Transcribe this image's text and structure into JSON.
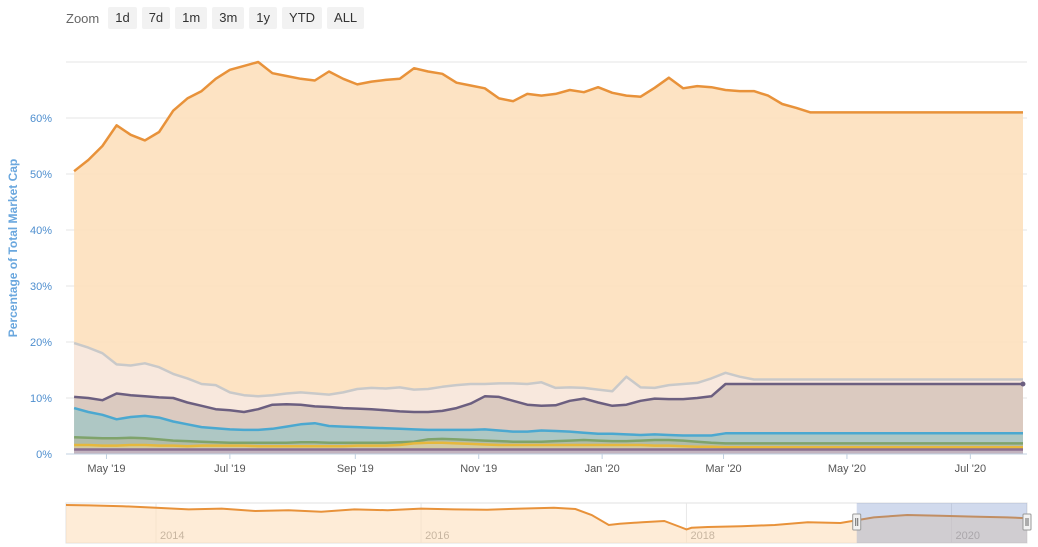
{
  "zoom": {
    "label": "Zoom",
    "buttons": [
      "1d",
      "7d",
      "1m",
      "3m",
      "1y",
      "YTD",
      "ALL"
    ]
  },
  "chart_data": {
    "type": "area",
    "title": "",
    "xlabel": "",
    "ylabel": "Percentage of Total Market Cap",
    "ylim": [
      0,
      70
    ],
    "y_ticks": [
      "0%",
      "10%",
      "20%",
      "30%",
      "40%",
      "50%",
      "60%"
    ],
    "y_tick_values": [
      0,
      10,
      20,
      30,
      40,
      50,
      60
    ],
    "x_ticks": [
      "May '19",
      "Jul '19",
      "Sep '19",
      "Nov '19",
      "Jan '20",
      "Mar '20",
      "May '20",
      "Jul '20"
    ],
    "x_tick_dates": [
      "2019-05-01",
      "2019-07-01",
      "2019-09-01",
      "2019-11-01",
      "2020-01-01",
      "2020-03-01",
      "2020-05-01",
      "2020-07-01"
    ],
    "x": [
      "2019-04-15",
      "2019-04-22",
      "2019-04-29",
      "2019-05-06",
      "2019-05-13",
      "2019-05-20",
      "2019-05-27",
      "2019-06-03",
      "2019-06-10",
      "2019-06-17",
      "2019-06-24",
      "2019-07-01",
      "2019-07-08",
      "2019-07-15",
      "2019-07-22",
      "2019-07-29",
      "2019-08-05",
      "2019-08-12",
      "2019-08-19",
      "2019-08-26",
      "2019-09-02",
      "2019-09-09",
      "2019-09-16",
      "2019-09-23",
      "2019-09-30",
      "2019-10-07",
      "2019-10-14",
      "2019-10-21",
      "2019-10-28",
      "2019-11-04",
      "2019-11-11",
      "2019-11-18",
      "2019-11-25",
      "2019-12-02",
      "2019-12-09",
      "2019-12-16",
      "2019-12-23",
      "2019-12-30",
      "2020-01-06",
      "2020-01-13",
      "2020-01-20",
      "2020-01-27",
      "2020-02-03",
      "2020-02-10",
      "2020-02-17",
      "2020-02-24",
      "2020-03-02",
      "2020-03-09",
      "2020-03-16",
      "2020-03-23",
      "2020-03-30",
      "2020-04-06",
      "2020-04-13",
      "2020-04-20",
      "2020-04-27",
      "2020-05-04",
      "2020-05-11",
      "2020-05-18",
      "2020-05-25",
      "2020-06-01",
      "2020-06-08",
      "2020-06-15",
      "2020-06-22",
      "2020-06-29",
      "2020-07-06",
      "2020-07-13",
      "2020-07-20",
      "2020-07-27"
    ],
    "series": [
      {
        "color": "#e8923a",
        "fill": "#fde0bd",
        "values": [
          50.5,
          52.5,
          55.0,
          58.7,
          57.0,
          56.0,
          57.5,
          61.3,
          63.5,
          64.8,
          67.0,
          68.6,
          69.3,
          70.0,
          68.0,
          67.5,
          67.0,
          66.7,
          68.3,
          67.0,
          66.0,
          66.5,
          66.8,
          67.0,
          68.9,
          68.3,
          67.9,
          66.3,
          65.8,
          65.3,
          63.5,
          63.0,
          64.3,
          64.0,
          64.3,
          65.0,
          64.6,
          65.5,
          64.5,
          64.0,
          63.8,
          65.4,
          67.2,
          65.3,
          65.7,
          65.5,
          65.0,
          64.8,
          64.8,
          64.0,
          62.5,
          61.8,
          61.0,
          61.0,
          61.0,
          61.0,
          61.0,
          61.0,
          61.0,
          61.0,
          61.0,
          61.0,
          61.0,
          61.0,
          61.0,
          61.0,
          61.0,
          61.0
        ]
      },
      {
        "color": "#c9c9c9",
        "fill": "#f7e8e0",
        "values": [
          19.8,
          19.0,
          18.0,
          16.0,
          15.8,
          16.2,
          15.5,
          14.3,
          13.5,
          12.5,
          12.3,
          11.0,
          10.5,
          10.3,
          10.5,
          10.8,
          11.0,
          10.8,
          10.6,
          11.0,
          11.6,
          11.8,
          11.7,
          11.9,
          11.5,
          11.6,
          12.0,
          12.3,
          12.5,
          12.5,
          12.6,
          12.6,
          12.5,
          12.8,
          11.8,
          11.9,
          11.8,
          11.5,
          11.2,
          13.8,
          11.9,
          11.8,
          12.3,
          12.5,
          12.7,
          13.5,
          14.5,
          13.8,
          13.3,
          13.3,
          13.3,
          13.3,
          13.3,
          13.3,
          13.3,
          13.3,
          13.3,
          13.3,
          13.3,
          13.3,
          13.3,
          13.3,
          13.3,
          13.3,
          13.3,
          13.3,
          13.3,
          13.3
        ]
      },
      {
        "color": "#6c5f80",
        "fill": "#d7c7bc",
        "values": [
          10.2,
          10.0,
          9.6,
          10.8,
          10.5,
          10.3,
          10.1,
          10.0,
          9.2,
          8.6,
          8.0,
          7.8,
          7.5,
          8.0,
          8.8,
          8.9,
          8.8,
          8.5,
          8.4,
          8.2,
          8.1,
          8.0,
          7.8,
          7.6,
          7.5,
          7.5,
          7.7,
          8.2,
          9.0,
          10.3,
          10.2,
          9.5,
          8.8,
          8.6,
          8.7,
          9.5,
          9.9,
          9.2,
          8.6,
          8.8,
          9.5,
          9.9,
          9.8,
          9.8,
          10.0,
          10.3,
          12.5,
          12.5,
          12.5,
          12.5,
          12.5,
          12.5,
          12.5,
          12.5,
          12.5,
          12.5,
          12.5,
          12.5,
          12.5,
          12.5,
          12.5,
          12.5,
          12.5,
          12.5,
          12.5,
          12.5,
          12.5,
          12.5
        ]
      },
      {
        "color": "#4ba8d0",
        "fill": "#a9c6c4",
        "values": [
          8.2,
          7.5,
          7.0,
          6.2,
          6.6,
          6.8,
          6.5,
          5.8,
          5.3,
          4.8,
          4.6,
          4.4,
          4.3,
          4.3,
          4.5,
          4.9,
          5.3,
          5.5,
          5.0,
          4.9,
          4.8,
          4.7,
          4.6,
          4.5,
          4.4,
          4.3,
          4.3,
          4.3,
          4.3,
          4.4,
          4.2,
          4.0,
          4.0,
          4.2,
          4.1,
          4.0,
          3.8,
          3.6,
          3.6,
          3.5,
          3.4,
          3.5,
          3.4,
          3.3,
          3.3,
          3.3,
          3.7,
          3.7,
          3.7,
          3.7,
          3.7,
          3.7,
          3.7,
          3.7,
          3.7,
          3.7,
          3.7,
          3.7,
          3.7,
          3.7,
          3.7,
          3.7,
          3.7,
          3.7,
          3.7,
          3.7,
          3.7,
          3.7
        ]
      },
      {
        "color": "#7fa36b",
        "fill": "#b1baa6",
        "values": [
          3.0,
          2.9,
          2.8,
          2.8,
          2.9,
          2.8,
          2.6,
          2.4,
          2.3,
          2.2,
          2.1,
          2.0,
          2.0,
          2.0,
          2.0,
          2.0,
          2.1,
          2.1,
          2.0,
          2.0,
          2.0,
          2.0,
          2.0,
          2.1,
          2.2,
          2.6,
          2.7,
          2.6,
          2.5,
          2.4,
          2.3,
          2.2,
          2.2,
          2.2,
          2.3,
          2.4,
          2.5,
          2.4,
          2.3,
          2.3,
          2.4,
          2.5,
          2.5,
          2.4,
          2.2,
          2.0,
          1.9,
          1.9,
          1.9,
          1.9,
          1.9,
          1.9,
          1.9,
          1.9,
          1.9,
          1.9,
          1.9,
          1.9,
          1.9,
          1.9,
          1.9,
          1.9,
          1.9,
          1.9,
          1.9,
          1.9,
          1.9,
          1.9
        ]
      },
      {
        "color": "#e6b83c",
        "fill": "#d8cca0",
        "values": [
          1.6,
          1.6,
          1.5,
          1.5,
          1.6,
          1.6,
          1.5,
          1.5,
          1.4,
          1.5,
          1.5,
          1.5,
          1.5,
          1.4,
          1.4,
          1.4,
          1.4,
          1.4,
          1.4,
          1.4,
          1.5,
          1.5,
          1.5,
          1.6,
          1.9,
          2.0,
          2.0,
          1.9,
          1.8,
          1.7,
          1.6,
          1.6,
          1.6,
          1.6,
          1.6,
          1.6,
          1.6,
          1.6,
          1.6,
          1.6,
          1.6,
          1.5,
          1.5,
          1.4,
          1.3,
          1.3,
          1.2,
          1.2,
          1.2,
          1.2,
          1.2,
          1.2,
          1.2,
          1.2,
          1.2,
          1.2,
          1.2,
          1.2,
          1.2,
          1.2,
          1.2,
          1.2,
          1.2,
          1.2,
          1.2,
          1.2,
          1.2,
          1.2
        ]
      },
      {
        "color": "#8a6f8f",
        "fill": "#c0b0c2",
        "values": [
          0.8,
          0.8,
          0.8,
          0.8,
          0.8,
          0.8,
          0.8,
          0.8,
          0.8,
          0.8,
          0.8,
          0.8,
          0.8,
          0.8,
          0.8,
          0.8,
          0.8,
          0.8,
          0.8,
          0.8,
          0.8,
          0.8,
          0.8,
          0.8,
          0.8,
          0.8,
          0.8,
          0.8,
          0.8,
          0.8,
          0.8,
          0.8,
          0.8,
          0.8,
          0.8,
          0.8,
          0.8,
          0.8,
          0.8,
          0.8,
          0.8,
          0.8,
          0.8,
          0.8,
          0.8,
          0.8,
          0.8,
          0.8,
          0.8,
          0.8,
          0.8,
          0.8,
          0.8,
          0.8,
          0.8,
          0.8,
          0.8,
          0.8,
          0.8,
          0.8,
          0.8,
          0.8,
          0.8,
          0.8,
          0.8,
          0.8,
          0.8,
          0.8
        ]
      }
    ],
    "navigator": {
      "x_ticks": [
        "2014",
        "2016",
        "2018",
        "2020"
      ],
      "x_tick_dates": [
        "2014-01-01",
        "2016-01-01",
        "2018-01-01",
        "2020-01-01"
      ],
      "x": [
        "2013-04-28",
        "2013-07-01",
        "2013-10-01",
        "2014-01-01",
        "2014-04-01",
        "2014-07-01",
        "2014-10-01",
        "2015-01-01",
        "2015-04-01",
        "2015-07-01",
        "2015-10-01",
        "2016-01-01",
        "2016-04-01",
        "2016-07-01",
        "2016-10-01",
        "2017-01-01",
        "2017-03-01",
        "2017-04-15",
        "2017-06-01",
        "2017-07-01",
        "2017-09-01",
        "2017-11-01",
        "2017-12-15",
        "2018-01-01",
        "2018-01-15",
        "2018-03-01",
        "2018-06-01",
        "2018-09-01",
        "2018-12-01",
        "2019-03-01",
        "2019-06-01",
        "2019-09-01",
        "2019-12-01",
        "2020-03-01",
        "2020-06-01",
        "2020-07-27"
      ],
      "values": [
        95,
        94,
        92,
        88,
        84,
        86,
        80,
        82,
        78,
        84,
        82,
        86,
        84,
        83,
        86,
        88,
        85,
        70,
        45,
        48,
        52,
        55,
        40,
        34,
        38,
        40,
        42,
        45,
        52,
        50,
        64,
        70,
        68,
        66,
        64,
        62
      ],
      "ylim": [
        0,
        100
      ],
      "selected_range": [
        "2019-04-15",
        "2020-07-27"
      ]
    }
  }
}
